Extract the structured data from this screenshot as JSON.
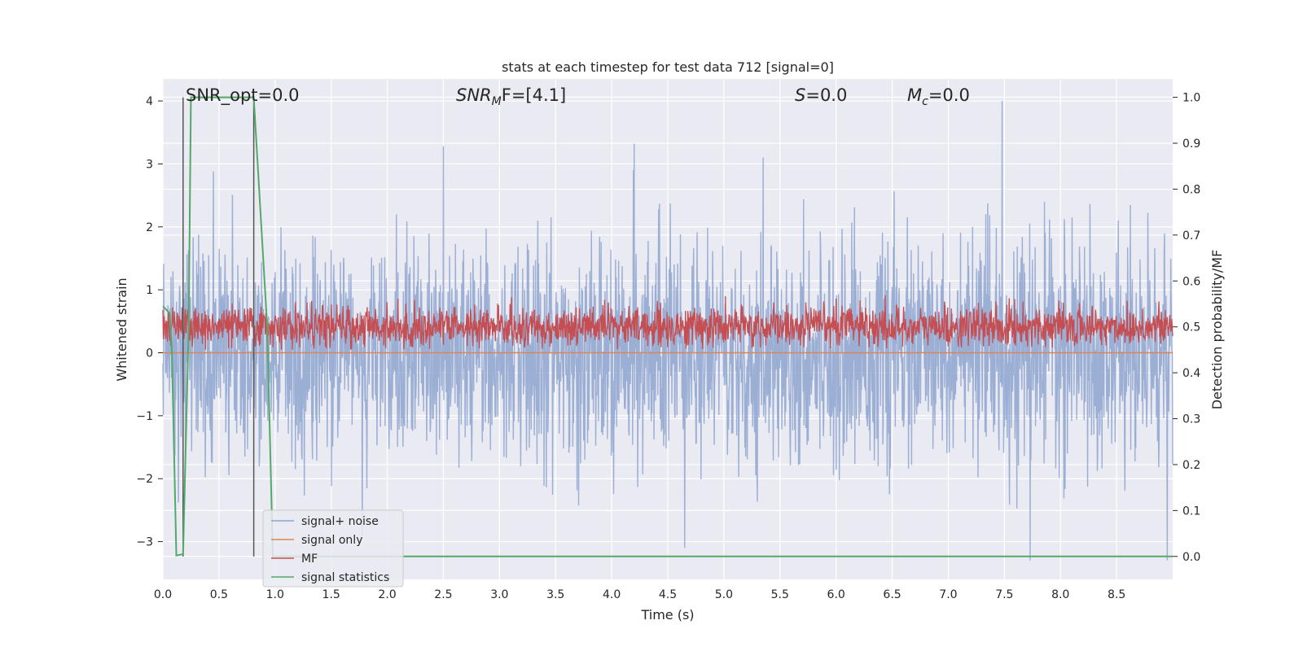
{
  "chart_data": {
    "type": "line",
    "title": "stats at each timestep for test data 712 [signal=0]",
    "xlabel": "Time (s)",
    "ylabel": "Whitened strain",
    "ylabel_right": "Detection probability/MF",
    "xlim": [
      0.0,
      9.0
    ],
    "ylim": [
      -3.6,
      4.35
    ],
    "ylim_right": [
      -0.05,
      1.04
    ],
    "xticks": [
      "0.0",
      "0.5",
      "1.0",
      "1.5",
      "2.0",
      "2.5",
      "3.0",
      "3.5",
      "4.0",
      "4.5",
      "5.0",
      "5.5",
      "6.0",
      "6.5",
      "7.0",
      "7.5",
      "8.0",
      "8.5"
    ],
    "yticks": [
      "4",
      "3",
      "2",
      "1",
      "0",
      "−1",
      "−2",
      "−3"
    ],
    "yticks_right": [
      "1.0",
      "0.9",
      "0.8",
      "0.7",
      "0.6",
      "0.5",
      "0.4",
      "0.3",
      "0.2",
      "0.1",
      "0.0"
    ],
    "grid": true,
    "legend_position": "lower-left",
    "annotations": {
      "snr_opt": "SNR_opt=0.0",
      "snr_mf_main": "SNR",
      "snr_mf_sub": "M",
      "snr_mf_tail": "F=[4.1]",
      "s_main": "S",
      "s_tail": "=0.0",
      "mc_main": "M",
      "mc_sub": "c",
      "mc_tail": "=0.0"
    },
    "vlines_x": [
      0.18,
      0.81
    ],
    "series": [
      {
        "name": "signal+ noise",
        "color": "#8da3cf",
        "desc": "noise",
        "amplitude_range": [
          -3.3,
          4.0
        ],
        "peaks": [
          [
            0.45,
            2.88
          ],
          [
            2.5,
            3.28
          ],
          [
            4.2,
            3.32
          ],
          [
            5.35,
            3.1
          ],
          [
            7.48,
            4.0
          ],
          [
            4.65,
            -3.1
          ],
          [
            7.73,
            -3.3
          ],
          [
            8.95,
            -3.3
          ]
        ]
      },
      {
        "name": "signal only",
        "color": "#dd8452",
        "desc": "flat",
        "values_x": [
          0.0,
          9.0
        ],
        "values_y": [
          0.0,
          0.0
        ]
      },
      {
        "name": "MF",
        "color": "#c44e52",
        "desc": "mf",
        "axis": "right",
        "baseline": 0.5,
        "range": [
          0.45,
          0.59
        ]
      },
      {
        "name": "signal statistics",
        "color": "#55a868",
        "axis": "right",
        "x": [
          0.0,
          0.06,
          0.08,
          0.12,
          0.18,
          0.23,
          0.25,
          0.29,
          0.81,
          0.93,
          0.98,
          9.0
        ],
        "y": [
          0.545,
          0.53,
          0.45,
          0.002,
          0.005,
          0.5,
          1.0,
          1.0,
          1.0,
          0.5,
          0.0,
          0.0
        ]
      }
    ]
  }
}
